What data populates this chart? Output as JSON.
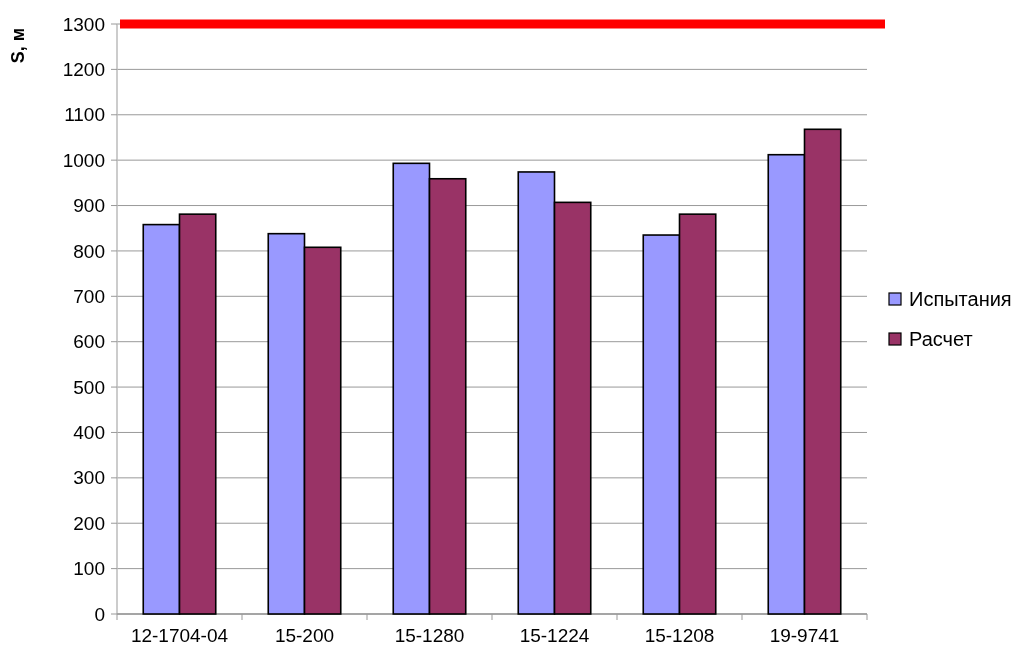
{
  "chart_data": {
    "type": "bar",
    "ylabel": "S, м",
    "categories": [
      "12-1704-04",
      "15-200",
      "15-1280",
      "15-1224",
      "15-1208",
      "19-9741"
    ],
    "series": [
      {
        "name": "Испытания",
        "color": "#9999ff",
        "values": [
          858,
          838,
          993,
          974,
          835,
          1012
        ]
      },
      {
        "name": "Расчет",
        "color": "#993366",
        "values": [
          881,
          808,
          959,
          907,
          881,
          1068
        ]
      }
    ],
    "ylim": [
      0,
      1300
    ],
    "yticks": [
      0,
      100,
      200,
      300,
      400,
      500,
      600,
      700,
      800,
      900,
      1000,
      1100,
      1200,
      1300
    ],
    "grid": "y",
    "legend": "right",
    "ref_lines": [
      {
        "axis": "y",
        "value": 1300,
        "color": "#ff0000"
      }
    ]
  }
}
